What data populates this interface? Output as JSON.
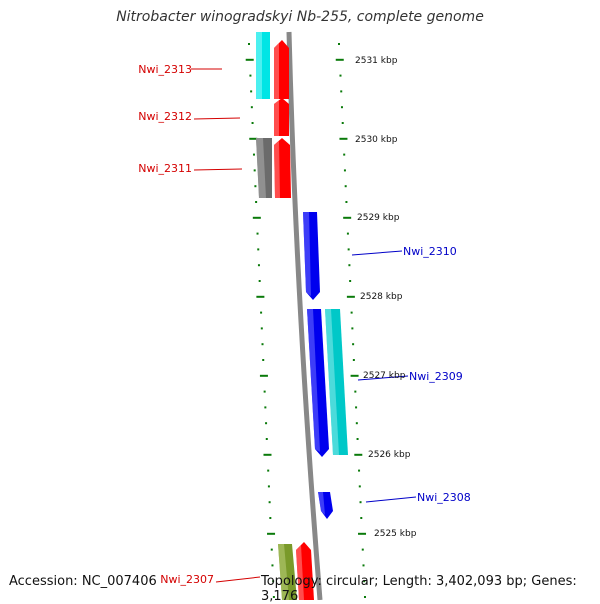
{
  "title": "Nitrobacter winogradskyi Nb-255, complete genome",
  "footer": {
    "accession": "Accession: NC_007406",
    "topology": "Topology: circular; Length: 3,402,093 bp; Genes: 3,176"
  },
  "colors": {
    "forward_label": "#d40000",
    "reverse_label": "#0000c8",
    "tick": "#0a7a0a",
    "backbone": "#888888"
  },
  "kbp_labels": [
    "2531 kbp",
    "2530 kbp",
    "2529 kbp",
    "2528 kbp",
    "2527 kbp",
    "2526 kbp",
    "2525 kbp"
  ],
  "gene_labels": [
    {
      "name": "Nwi_2313",
      "strand": "forward"
    },
    {
      "name": "Nwi_2312",
      "strand": "forward"
    },
    {
      "name": "Nwi_2311",
      "strand": "forward"
    },
    {
      "name": "Nwi_2310",
      "strand": "reverse"
    },
    {
      "name": "Nwi_2309",
      "strand": "reverse"
    },
    {
      "name": "Nwi_2308",
      "strand": "reverse"
    },
    {
      "name": "Nwi_2307",
      "strand": "forward"
    }
  ],
  "features": [
    {
      "name": "Nwi_2313",
      "color": "#ff0000",
      "strand": "forward"
    },
    {
      "name": "Nwi_2312",
      "color": "#ff0000",
      "strand": "forward"
    },
    {
      "name": "Nwi_2311",
      "color": "#ff0000",
      "strand": "forward"
    },
    {
      "name": "Nwi_2310",
      "color": "#0000ee",
      "strand": "reverse"
    },
    {
      "name": "Nwi_2309",
      "color": "#0000ee",
      "strand": "reverse"
    },
    {
      "name": "Nwi_2308",
      "color": "#0000ee",
      "strand": "reverse"
    },
    {
      "name": "Nwi_2307",
      "color": "#ff0000",
      "strand": "forward"
    }
  ],
  "other_features": [
    {
      "kind": "cyan",
      "color": "#00e5e5"
    },
    {
      "kind": "grey",
      "color": "#777777"
    },
    {
      "kind": "teal",
      "color": "#00c8c8"
    },
    {
      "kind": "olive",
      "color": "#7a9a2a"
    }
  ]
}
